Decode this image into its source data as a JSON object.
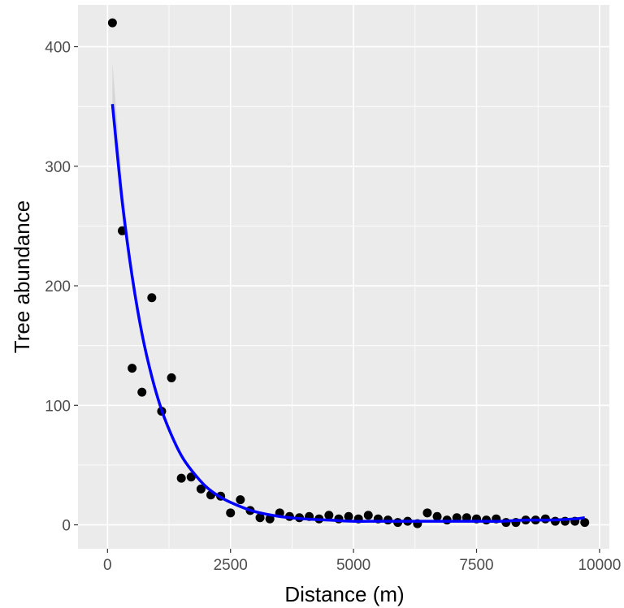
{
  "chart_data": {
    "type": "scatter",
    "title": "",
    "xlabel": "Distance (m)",
    "ylabel": "Tree abundance",
    "xlim": [
      -600,
      10200
    ],
    "ylim": [
      -20,
      435
    ],
    "x_ticks": [
      0,
      2500,
      5000,
      7500,
      10000
    ],
    "x_tick_labels": [
      "0",
      "2500",
      "5000",
      "7500",
      "10000"
    ],
    "y_ticks": [
      0,
      100,
      200,
      300,
      400
    ],
    "y_tick_labels": [
      "0",
      "100",
      "200",
      "300",
      "400"
    ],
    "grid": true,
    "legend": "none",
    "points": {
      "color": "#000000",
      "x": [
        100,
        300,
        500,
        700,
        900,
        1100,
        1300,
        1500,
        1700,
        1900,
        2100,
        2300,
        2500,
        2700,
        2900,
        3100,
        3300,
        3500,
        3700,
        3900,
        4100,
        4300,
        4500,
        4700,
        4900,
        5100,
        5300,
        5500,
        5700,
        5900,
        6100,
        6300,
        6500,
        6700,
        6900,
        7100,
        7300,
        7500,
        7700,
        7900,
        8100,
        8300,
        8500,
        8700,
        8900,
        9100,
        9300,
        9500,
        9700
      ],
      "y": [
        420,
        246,
        131,
        111,
        190,
        95,
        123,
        39,
        40,
        30,
        25,
        24,
        10,
        21,
        12,
        6,
        5,
        10,
        7,
        6,
        7,
        5,
        8,
        5,
        7,
        5,
        8,
        5,
        4,
        2,
        3,
        1,
        10,
        7,
        4,
        6,
        6,
        5,
        4,
        5,
        2,
        2,
        4,
        4,
        5,
        3,
        3,
        3,
        2
      ]
    },
    "fit_line": {
      "color": "#0000ff",
      "x": [
        100,
        300,
        500,
        700,
        900,
        1100,
        1300,
        1500,
        1700,
        2000,
        2300,
        2600,
        3000,
        3500,
        4000,
        4500,
        5000,
        5500,
        6000,
        6500,
        7000,
        7500,
        8000,
        8500,
        9000,
        9500,
        9700
      ],
      "y": [
        352,
        270,
        208,
        160,
        124,
        96,
        75,
        58,
        46,
        32,
        23,
        17,
        11,
        7,
        5,
        4,
        3,
        3,
        3,
        3,
        3,
        3,
        3,
        4,
        4,
        5,
        6
      ]
    }
  }
}
